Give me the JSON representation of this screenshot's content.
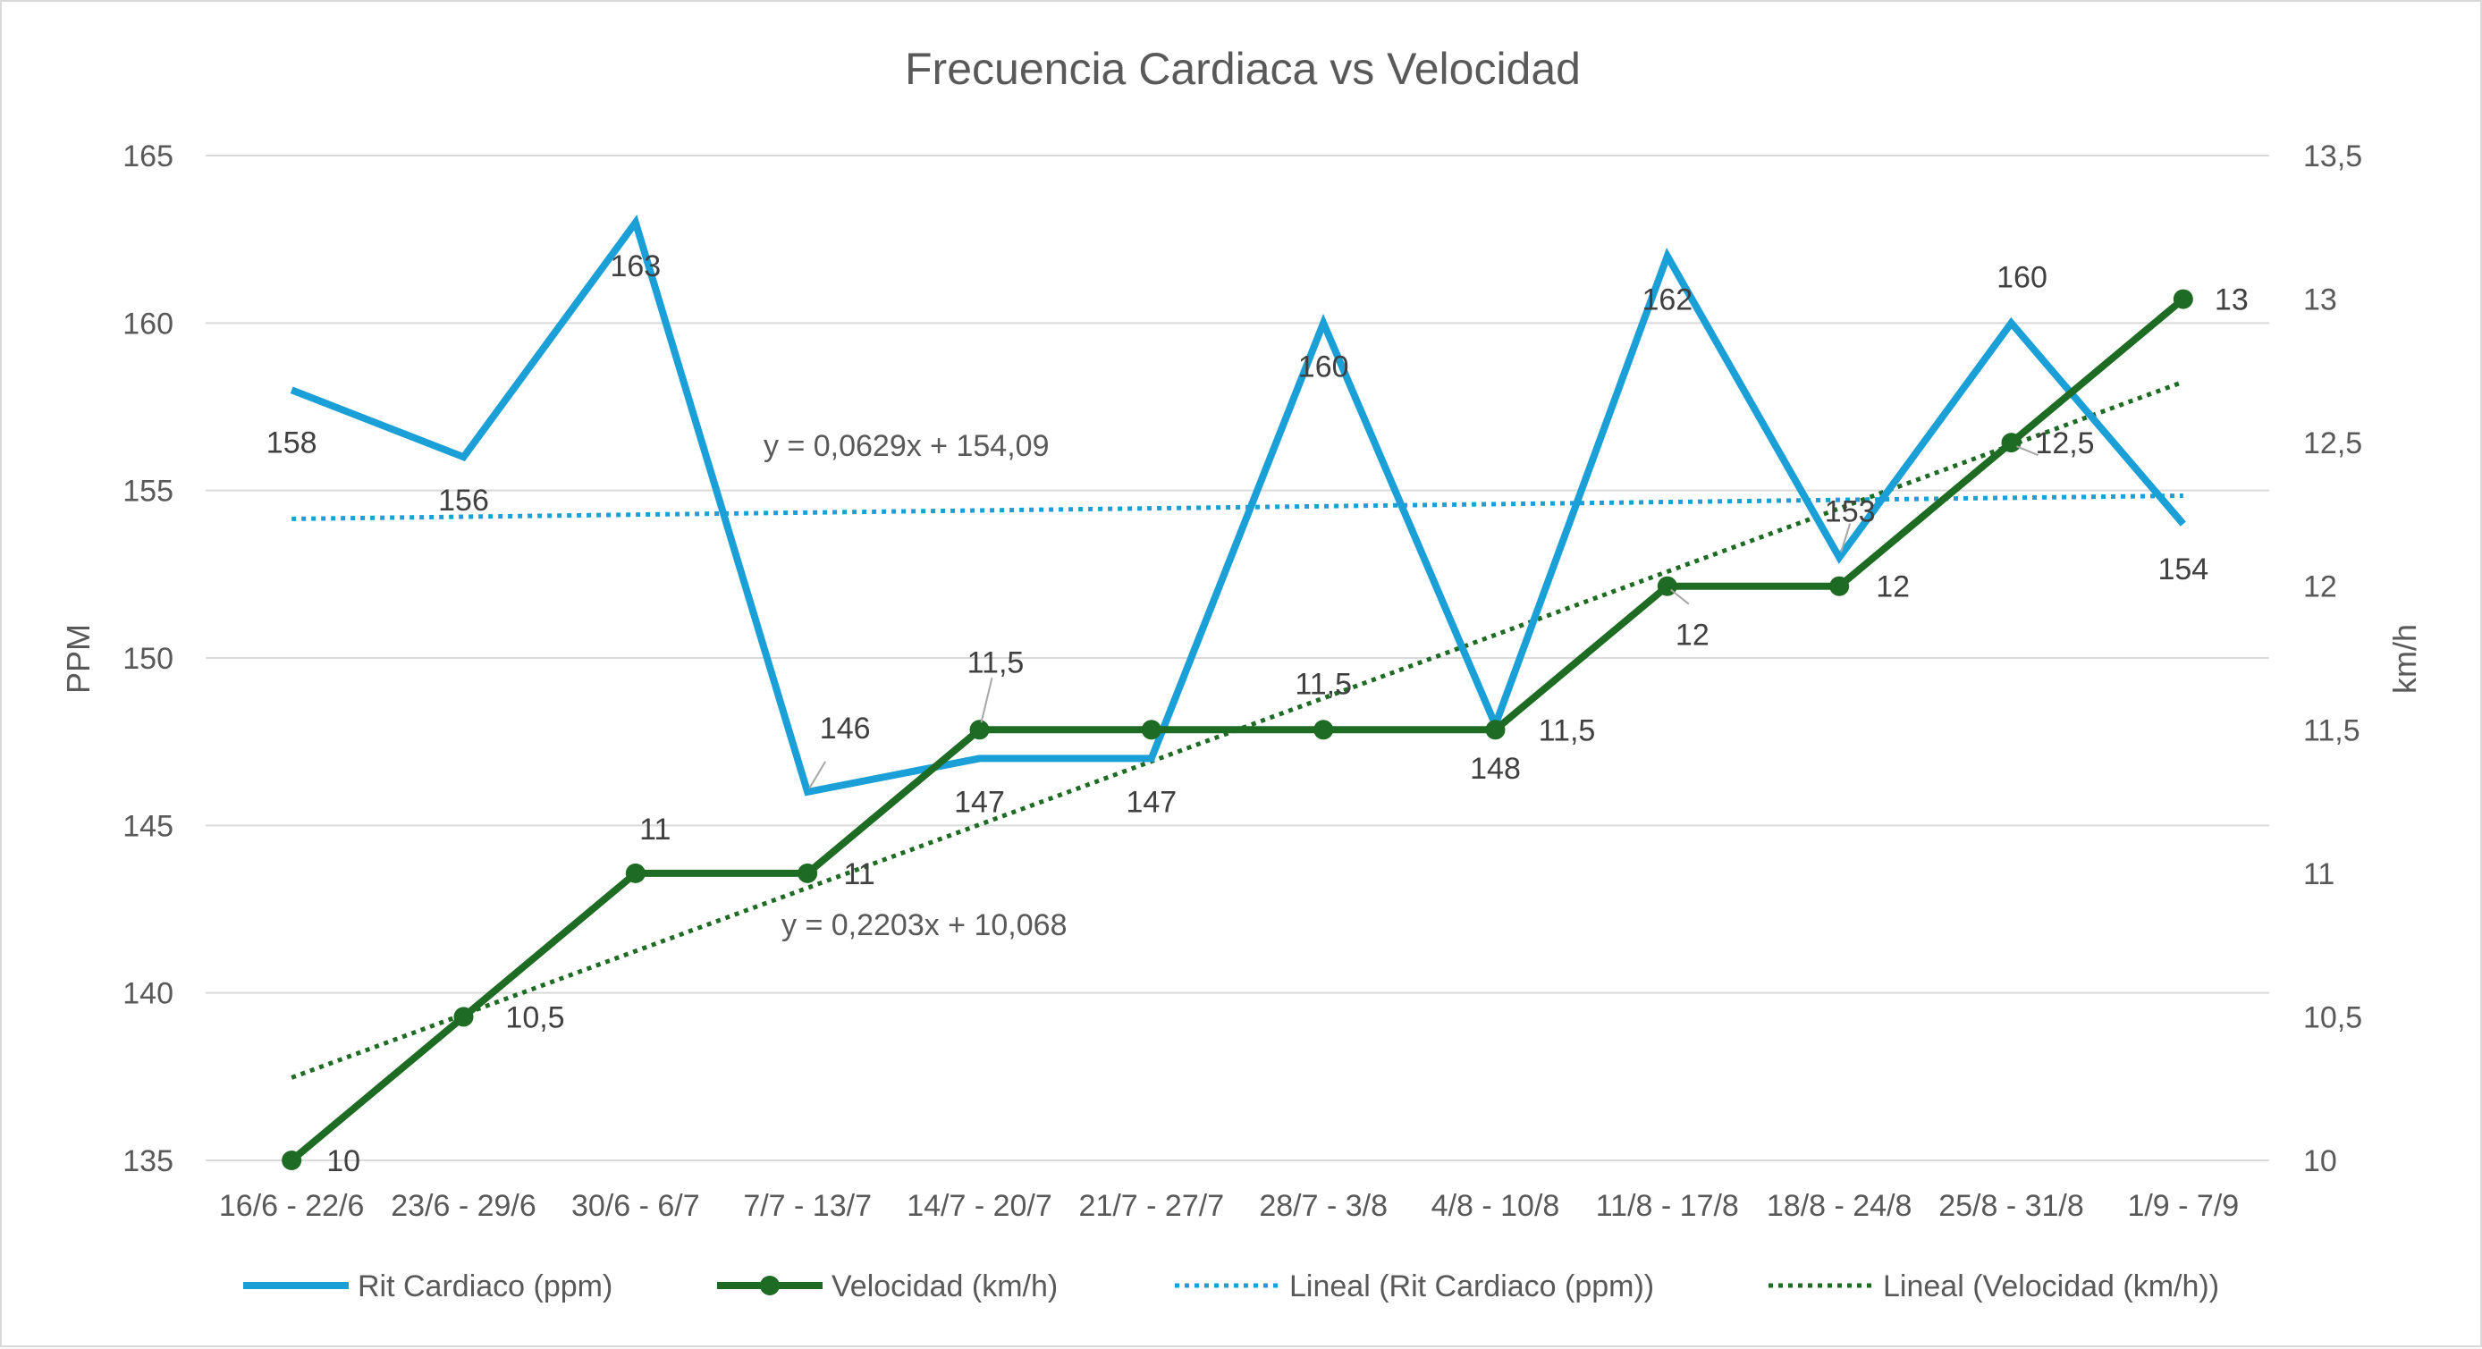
{
  "chart_data": {
    "type": "line",
    "title": "Frecuencia Cardiaca vs Velocidad",
    "categories": [
      "16/6 - 22/6",
      "23/6 - 29/6",
      "30/6 - 6/7",
      "7/7 - 13/7",
      "14/7 - 20/7",
      "21/7 - 27/7",
      "28/7 - 3/8",
      "4/8 - 10/8",
      "11/8 - 17/8",
      "18/8 - 24/8",
      "25/8 - 31/8",
      "1/9 - 7/9"
    ],
    "y_left": {
      "label": "PPM",
      "min": 135,
      "max": 165,
      "step": 5,
      "ticks": [
        "135",
        "140",
        "145",
        "150",
        "155",
        "160",
        "165"
      ]
    },
    "y_right": {
      "label": "km/h",
      "min": 10,
      "max": 13.5,
      "step": 0.5,
      "ticks": [
        "10",
        "10,5",
        "11",
        "11,5",
        "12",
        "12,5",
        "13",
        "13,5"
      ]
    },
    "grid": true,
    "legend_position": "bottom",
    "series": [
      {
        "name": "Rit Cardiaco (ppm)",
        "axis": "left",
        "color": "#1a9fd6",
        "values": [
          158,
          156,
          163,
          146,
          147,
          147,
          160,
          148,
          162,
          153,
          160,
          154
        ],
        "labels": [
          "158",
          "156",
          "163",
          "146",
          "147",
          "147",
          "160",
          "148",
          "162",
          "153",
          "160",
          "154"
        ]
      },
      {
        "name": "Velocidad (km/h)",
        "axis": "right",
        "color": "#1e6b23",
        "markers": true,
        "values": [
          10,
          10.5,
          11,
          11,
          11.5,
          11.5,
          11.5,
          11.5,
          12,
          12,
          12.5,
          13
        ],
        "labels": [
          "10",
          "10,5",
          "11",
          "11",
          "11,5",
          "11,5",
          "11,5",
          "11,5",
          "12",
          "12",
          "12,5",
          "13"
        ]
      }
    ],
    "trendlines": [
      {
        "name": "Lineal (Rit Cardiaco (ppm))",
        "axis": "left",
        "color": "#1a9fd6",
        "slope": 0.0629,
        "intercept": 154.09,
        "equation": "y = 0,0629x + 154,09"
      },
      {
        "name": "Lineal (Velocidad (km/h))",
        "axis": "right",
        "color": "#1e6b23",
        "slope": 0.2203,
        "intercept": 10.068,
        "equation": "y = 0,2203x + 10,068"
      }
    ]
  }
}
